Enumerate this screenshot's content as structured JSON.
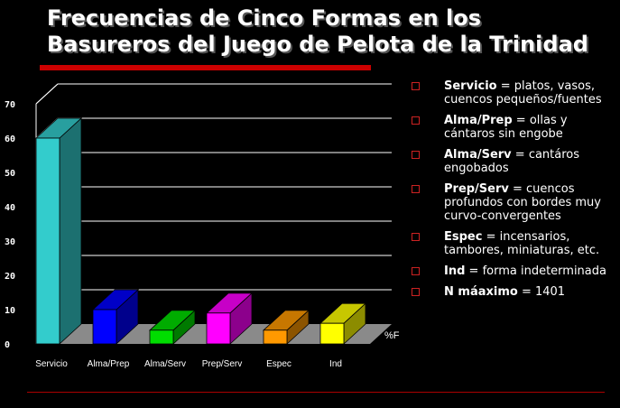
{
  "title": {
    "line1": "Frecuencias de Cinco Formas en los",
    "line2": "Basureros del Juego de Pelota de la Trinidad"
  },
  "colors": {
    "title_rule": "#cc0000",
    "grid": "#ffffff",
    "floor": "#8a8a8a",
    "bullet": "#cc2222"
  },
  "legend": {
    "items": [
      {
        "term": "Servicio",
        "desc": " = platos, vasos, cuencos pequeños/fuentes"
      },
      {
        "term": "Alma/Prep",
        "desc": " = ollas y cántaros sin engobe"
      },
      {
        "term": "Alma/Serv",
        "desc": " = cantáros engobados"
      },
      {
        "term": "Prep/Serv",
        "desc": " = cuencos profundos con bordes muy curvo-convergentes"
      },
      {
        "term": "Espec",
        "desc": " = incensarios, tambores, miniaturas, etc."
      },
      {
        "term": "Ind",
        "desc": " = forma indeterminada"
      },
      {
        "term": "N máaximo",
        "desc": " = 1401"
      }
    ]
  },
  "chart_data": {
    "type": "bar",
    "categories": [
      "Servicio",
      "Alma/Prep",
      "Alma/Serv",
      "Prep/Serv",
      "Espec",
      "Ind"
    ],
    "values": [
      60,
      10,
      4,
      9,
      4,
      6
    ],
    "colors": [
      "#33cccc",
      "#0000ff",
      "#00dd00",
      "#ff00ff",
      "#ff9900",
      "#ffff00"
    ],
    "ylim": [
      0,
      70
    ],
    "yticks": [
      0,
      10,
      20,
      30,
      40,
      50,
      60,
      70
    ],
    "ylabel": "%F",
    "grid": true,
    "style": "3d"
  }
}
